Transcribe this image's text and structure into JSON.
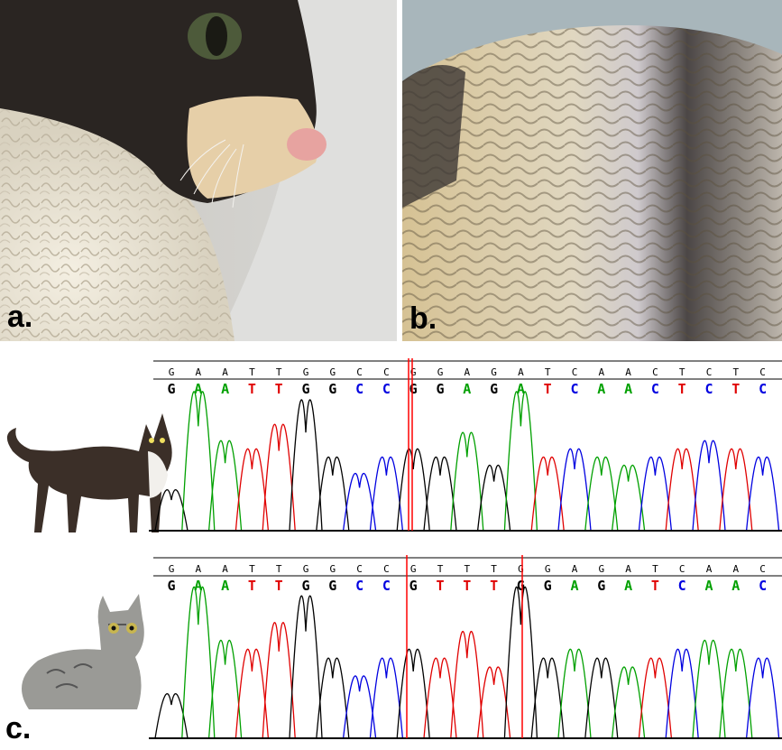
{
  "panels": {
    "a": {
      "label": "a."
    },
    "b": {
      "label": "b."
    },
    "c": {
      "label": "c."
    }
  },
  "colors": {
    "A": "#00a000",
    "T": "#e00000",
    "G": "#000000",
    "C": "#0000e0",
    "marker": "#ff0000"
  },
  "traces": [
    {
      "reference": [
        "G",
        "A",
        "A",
        "T",
        "T",
        "G",
        "G",
        "C",
        "C",
        "G",
        "G",
        "A",
        "G",
        "A",
        "T",
        "C",
        "A",
        "A",
        "C",
        "T",
        "C",
        "T",
        "C"
      ],
      "called": [
        "G",
        "A",
        "A",
        "T",
        "T",
        "G",
        "G",
        "C",
        "C",
        "G",
        "G",
        "A",
        "G",
        "A",
        "T",
        "C",
        "A",
        "A",
        "C",
        "T",
        "C",
        "T",
        "C"
      ]
    },
    {
      "reference": [
        "G",
        "A",
        "A",
        "T",
        "T",
        "G",
        "G",
        "C",
        "C",
        "G",
        "T",
        "T",
        "T",
        "G",
        "G",
        "A",
        "G",
        "A",
        "T",
        "C",
        "A",
        "A",
        "C"
      ],
      "called": [
        "G",
        "A",
        "A",
        "T",
        "T",
        "G",
        "G",
        "C",
        "C",
        "G",
        "T",
        "T",
        "T",
        "G",
        "G",
        "A",
        "G",
        "A",
        "T",
        "C",
        "A",
        "A",
        "C"
      ]
    }
  ]
}
